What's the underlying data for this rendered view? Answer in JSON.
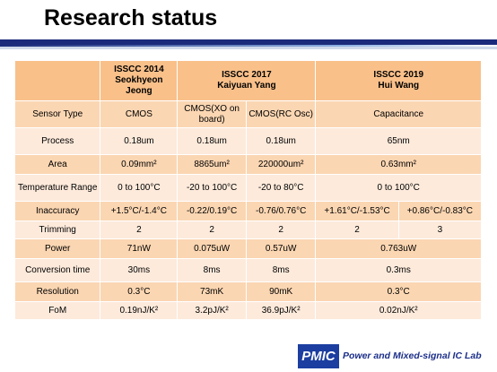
{
  "title": "Research status",
  "columns": [
    {
      "line1": "ISSCC 2014",
      "line2": "Seokhyeon",
      "line3": "Jeong"
    },
    {
      "line1": "ISSCC 2017",
      "line2": "Kaiyuan Yang"
    },
    {
      "line1": "ISSCC 2019",
      "line2": "Hui Wang"
    }
  ],
  "rows": {
    "sensor_type": {
      "label": "Sensor Type",
      "c1": "CMOS",
      "c2": "CMOS(XO on board)",
      "c3": "CMOS(RC Osc)",
      "c4": "Capacitance"
    },
    "process": {
      "label": "Process",
      "c1": "0.18um",
      "c2": "0.18um",
      "c3": "0.18um",
      "c4": "65nm"
    },
    "area": {
      "label": "Area",
      "c1": "0.09mm²",
      "c2": "8865um²",
      "c3": "220000um²",
      "c4": "0.63mm²"
    },
    "temp_range": {
      "label": "Temperature Range",
      "c1": "0 to 100°C",
      "c2": "-20 to 100°C",
      "c3": "-20 to 80°C",
      "c4": "0 to 100°C"
    },
    "inaccuracy": {
      "label": "Inaccuracy",
      "c1": "+1.5°C/-1.4°C",
      "c2": "-0.22/0.19°C",
      "c3": "-0.76/0.76°C",
      "c4": "+1.61°C/-1.53°C",
      "c5": "+0.86°C/-0.83°C"
    },
    "trimming": {
      "label": "Trimming",
      "c1": "2",
      "c2": "2",
      "c3": "2",
      "c4": "2",
      "c5": "3"
    },
    "power": {
      "label": "Power",
      "c1": "71nW",
      "c2": "0.075uW",
      "c3": "0.57uW",
      "c4": "0.763uW"
    },
    "conversion_time": {
      "label": "Conversion time",
      "c1": "30ms",
      "c2": "8ms",
      "c3": "8ms",
      "c4": "0.3ms"
    },
    "resolution": {
      "label": "Resolution",
      "c1": "0.3°C",
      "c2": "73mK",
      "c3": "90mK",
      "c4": "0.3°C"
    },
    "fom": {
      "label": "FoM",
      "c1": "0.19nJ/K²",
      "c2": "3.2pJ/K²",
      "c3": "36.9pJ/K²",
      "c4": "0.02nJ/K²"
    }
  },
  "logo": {
    "mark": "PMIC",
    "text": "Power and Mixed-signal IC Lab"
  },
  "colors": {
    "header": "#f9c08a",
    "row_dark": "#fbd6b2",
    "row_light": "#fdeadb",
    "brand": "#1c3ea0"
  }
}
